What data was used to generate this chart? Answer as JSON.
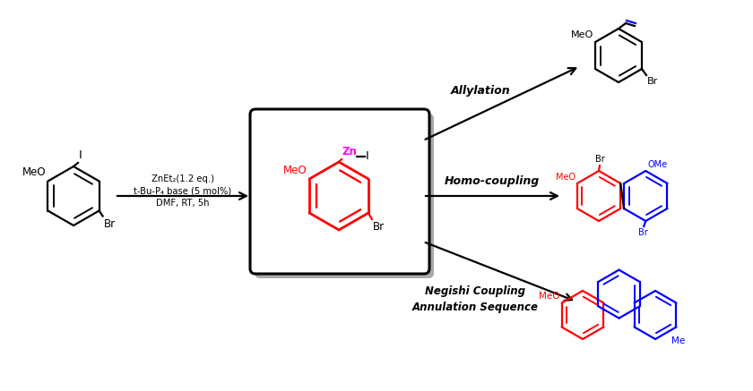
{
  "bg_color": "#ffffff",
  "reaction_conditions_line1": "ZnEt₂(1.2 eq.)",
  "reaction_conditions_line2": "t-Bu-P₄ base (5 mol%)",
  "reaction_conditions_line3": "DMF, RT, 5h",
  "label_allylation": "Allylation",
  "label_homo": "Homo-coupling",
  "label_negishi": "Negishi Coupling\nAnnulation Sequence",
  "color_red": "#ff0000",
  "color_blue": "#0000ff",
  "color_magenta": "#ff00ff",
  "color_black": "#000000",
  "color_shadow": "#aaaaaa"
}
